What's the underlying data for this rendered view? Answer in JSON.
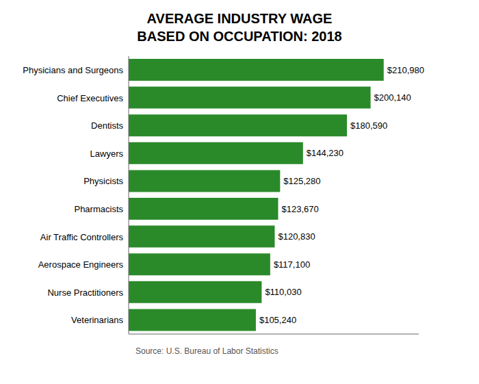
{
  "chart_data": {
    "type": "bar",
    "orientation": "horizontal",
    "title": "AVERAGE INDUSTRY WAGE",
    "subtitle": "BASED ON OCCUPATION: 2018",
    "annotations": [
      "Source: U.S. Bureau of Labor Statistics"
    ],
    "categories": [
      "Physicians and Surgeons",
      "Chief Executives",
      "Dentists",
      "Lawyers",
      "Physicists",
      "Pharmacists",
      "Air Traffic Controllers",
      "Aerospace Engineers",
      "Nurse Practitioners",
      "Veterinarians"
    ],
    "values": [
      210980,
      200140,
      180590,
      144230,
      125280,
      123670,
      120830,
      117100,
      110030,
      105240
    ],
    "value_labels": [
      "$210,980",
      "$200,140",
      "$180,590",
      "$144,230",
      "$125,280",
      "$123,670",
      "$120,830",
      "$117,100",
      "$110,030",
      "$105,240"
    ],
    "data_labels": true,
    "color": "#2a8a2a",
    "xlim": [
      0,
      240000
    ],
    "grid": false,
    "tick_labels": "y"
  }
}
